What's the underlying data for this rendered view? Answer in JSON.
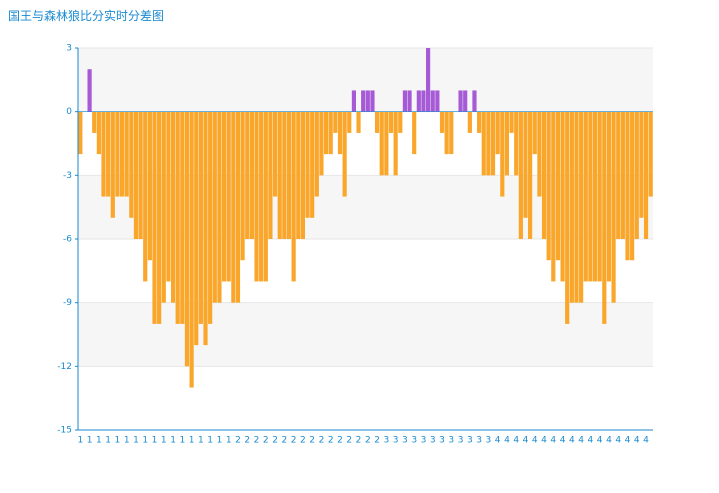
{
  "chart_data": {
    "type": "bar",
    "title": "国王与森林狼比分实时分差图",
    "categories": [
      "1",
      null,
      "1",
      null,
      "1",
      null,
      "1",
      null,
      "1",
      null,
      "1",
      null,
      "1",
      null,
      "1",
      null,
      "1",
      null,
      "1",
      null,
      "1",
      null,
      "1",
      null,
      "1",
      null,
      "1",
      null,
      "1",
      null,
      "1",
      null,
      "1",
      null,
      "2",
      null,
      "2",
      null,
      "2",
      null,
      "2",
      null,
      "2",
      null,
      "2",
      null,
      "2",
      null,
      "2",
      null,
      "2",
      null,
      "2",
      null,
      "2",
      null,
      "2",
      null,
      "2",
      null,
      "2",
      null,
      "2",
      null,
      "2",
      null,
      "3",
      null,
      "3",
      null,
      "3",
      null,
      "3",
      null,
      "3",
      null,
      "3",
      null,
      "3",
      null,
      "3",
      null,
      "3",
      null,
      "3",
      null,
      "3",
      null,
      "3",
      null,
      "4",
      null,
      "4",
      null,
      "4",
      null,
      "4",
      null,
      "4",
      null,
      "4",
      null,
      "4",
      null,
      "4",
      null,
      "4",
      null,
      "4",
      null,
      "4",
      null,
      "4",
      null,
      "4",
      null,
      "4",
      null,
      "4",
      null,
      "4",
      null,
      "4",
      null
    ],
    "values": [
      -2,
      0,
      2,
      -1,
      -2,
      -4,
      -4,
      -5,
      -4,
      -4,
      -4,
      -5,
      -6,
      -6,
      -8,
      -7,
      -10,
      -10,
      -9,
      -8,
      -9,
      -10,
      -10,
      -12,
      -13,
      -11,
      -10,
      -11,
      -10,
      -9,
      -9,
      -8,
      -8,
      -9,
      -9,
      -7,
      -6,
      -6,
      -8,
      -8,
      -8,
      -6,
      -4,
      -6,
      -6,
      -6,
      -8,
      -6,
      -6,
      -5,
      -5,
      -4,
      -3,
      -2,
      -2,
      -1,
      -2,
      -4,
      -1,
      1,
      -1,
      1,
      1,
      1,
      -1,
      -3,
      -3,
      -1,
      -3,
      -1,
      1,
      1,
      -2,
      1,
      1,
      3,
      1,
      1,
      -1,
      -2,
      -2,
      0,
      1,
      1,
      -1,
      1,
      -1,
      -3,
      -3,
      -3,
      -2,
      -4,
      -3,
      -1,
      -3,
      -6,
      -5,
      -6,
      -2,
      -4,
      -6,
      -7,
      -8,
      -7,
      -8,
      -10,
      -9,
      -9,
      -9,
      -8,
      -8,
      -8,
      -8,
      -10,
      -8,
      -9,
      -6,
      -6,
      -7,
      -7,
      -6,
      -5,
      -6,
      -4
    ],
    "positive_color": "#a65ad6",
    "negative_color": "#f9a62a",
    "ylim": [
      -15,
      3
    ],
    "yticks": [
      3,
      0,
      -3,
      -6,
      -9,
      -12,
      -15
    ],
    "grid": true
  }
}
